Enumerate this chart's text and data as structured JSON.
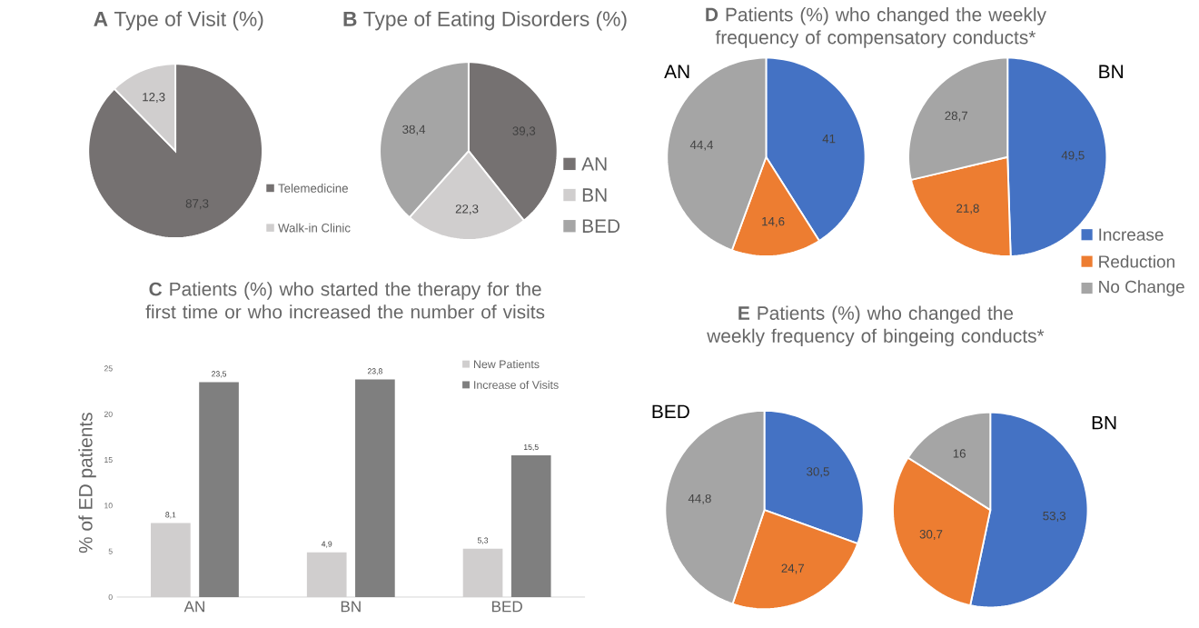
{
  "chart_data": [
    {
      "type": "pie",
      "title": "**A** Type of Visit (%)",
      "categories": [
        "Telemedicine",
        "Walk-in Clinic"
      ],
      "values": [
        87.3,
        12.3
      ],
      "colors": [
        "#757171",
        "#d0cece"
      ],
      "value_labels": [
        "87,3",
        "12,3"
      ],
      "legend": "right"
    },
    {
      "type": "pie",
      "title": "**B** Type of Eating Disorders (%)",
      "categories": [
        "AN",
        "BN",
        "BED"
      ],
      "values": [
        39.3,
        22.3,
        38.4
      ],
      "colors": [
        "#757171",
        "#d0cece",
        "#a5a5a5"
      ],
      "value_labels": [
        "39,3",
        "22,3",
        "38,4"
      ],
      "legend": "right"
    },
    {
      "type": "pie",
      "title": "**D** Patients (%) who changed the weekly frequency of compensatory conducts*",
      "subtitle": "AN",
      "categories": [
        null,
        null,
        null
      ],
      "values": [
        41,
        14.6,
        44.4
      ],
      "colors": [
        "#4472c4",
        "#ed7d31",
        "#a5a5a5"
      ],
      "value_labels": [
        "41",
        "14,6",
        "44,4"
      ]
    },
    {
      "type": "pie",
      "subtitle": "BN",
      "categories": [
        "Increase",
        "Reduction",
        "No Change"
      ],
      "values": [
        49.5,
        21.8,
        28.7
      ],
      "colors": [
        "#4472c4",
        "#ed7d31",
        "#a5a5a5"
      ],
      "value_labels": [
        "49,5",
        "21,8",
        "28,7"
      ],
      "legend": "bottom right"
    },
    {
      "type": "bar",
      "title": "**C** Patients (%) who started the therapy for the first time or who increased the number of visits",
      "ylabel": "% of ED patients",
      "categories": [
        "AN",
        "BN",
        "BED"
      ],
      "ylim": [
        0,
        25
      ],
      "yticks": [
        0,
        5,
        10,
        15,
        20,
        25
      ],
      "legend": "top right",
      "series": [
        {
          "name": "New Patients",
          "color": "#d0cece",
          "values": [
            8.1,
            4.9,
            5.3
          ],
          "value_labels": [
            "8,1",
            "4,9",
            "5,3"
          ]
        },
        {
          "name": "Increase of Visits",
          "color": "#7f7f7f",
          "values": [
            23.5,
            23.8,
            15.5
          ],
          "value_labels": [
            "23,5",
            "23,8",
            "15,5"
          ]
        }
      ]
    },
    {
      "type": "pie",
      "title": "**E** Patients (%) who changed the weekly frequency of bingeing conducts*",
      "subtitle": "BED",
      "categories": [
        null,
        null,
        null
      ],
      "values": [
        30.5,
        24.7,
        44.8
      ],
      "colors": [
        "#4472c4",
        "#ed7d31",
        "#a5a5a5"
      ],
      "value_labels": [
        "30,5",
        "24,7",
        "44,8"
      ]
    },
    {
      "type": "pie",
      "subtitle": "BN",
      "categories": [
        null,
        null,
        null
      ],
      "values": [
        53.3,
        30.7,
        16
      ],
      "colors": [
        "#4472c4",
        "#ed7d31",
        "#a5a5a5"
      ],
      "value_labels": [
        "53,3",
        "30,7",
        "16"
      ]
    }
  ]
}
